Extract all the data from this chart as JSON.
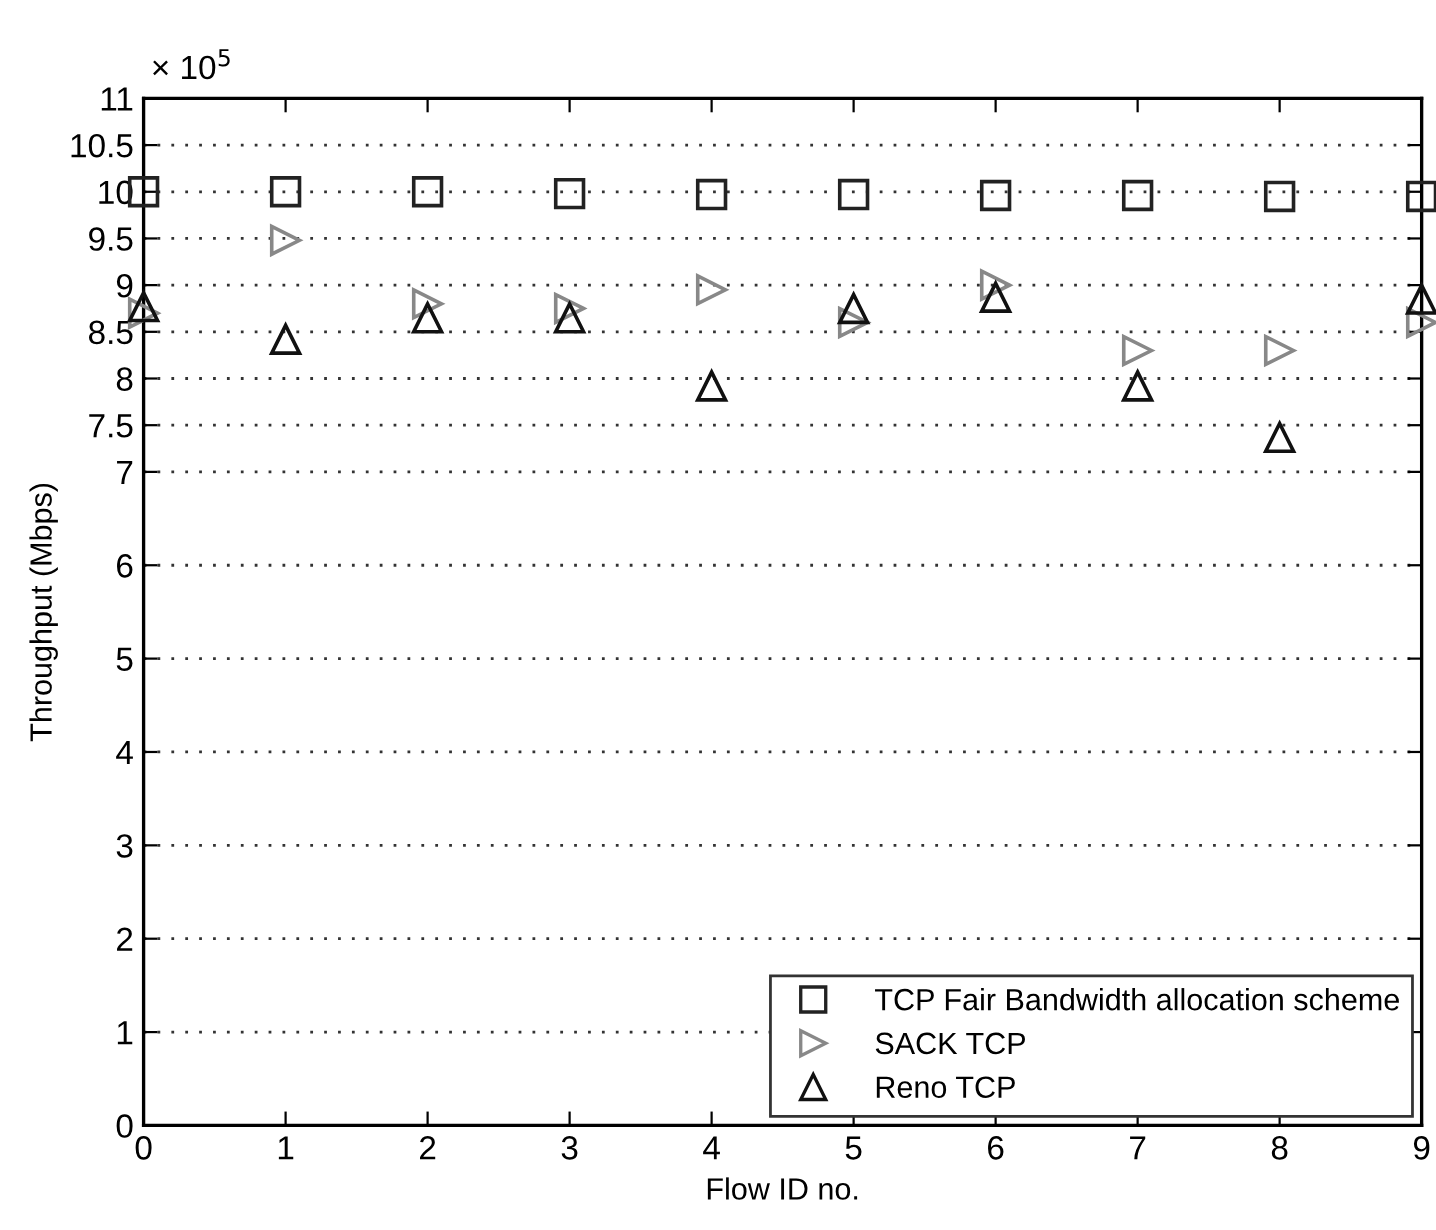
{
  "chart_data": {
    "type": "scatter",
    "xlabel": "Flow ID no.",
    "ylabel": "Throughput (Mbps)",
    "annotations": [
      "× 10$^{5}$"
    ],
    "x": [
      0,
      1,
      2,
      3,
      4,
      5,
      6,
      7,
      8,
      9
    ],
    "series": [
      {
        "name": "TCP Fair Bandwidth allocation scheme",
        "color": "#222222",
        "marker": "square",
        "values": [
          10,
          10,
          10,
          9.98,
          9.97,
          9.97,
          9.96,
          9.96,
          9.95,
          9.95
        ]
      },
      {
        "name": "SACK TCP",
        "color": "#888888",
        "marker": "triangle_right",
        "values": [
          8.7,
          9.48,
          8.8,
          8.75,
          8.95,
          8.6,
          9.0,
          8.3,
          8.3,
          8.6
        ]
      },
      {
        "name": "Reno TCP",
        "color": "#111111",
        "marker": "triangle",
        "values": [
          8.77,
          8.42,
          8.65,
          8.65,
          7.92,
          8.75,
          8.87,
          7.92,
          7.37,
          8.85
        ]
      }
    ],
    "xlim": [
      0,
      9
    ],
    "xticks": [
      0,
      1,
      2,
      3,
      4,
      5,
      6,
      7,
      8,
      9
    ],
    "ylim": [
      0,
      11
    ],
    "yticks": [
      0,
      1,
      2,
      3,
      4,
      5,
      6,
      7,
      7.5,
      8,
      8.5,
      9,
      9.5,
      10,
      10.5,
      11
    ],
    "grid": "y",
    "legend": "bottom right"
  }
}
